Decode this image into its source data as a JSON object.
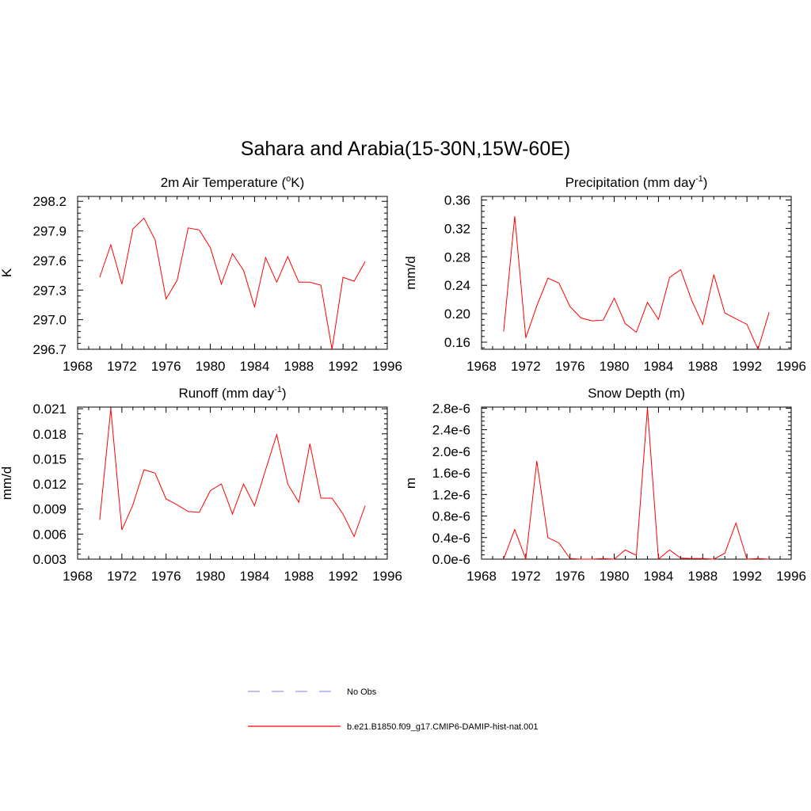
{
  "figure": {
    "title": "Sahara and Arabia(15-30N,15W-60E)"
  },
  "legend": {
    "items": [
      {
        "label": "No Obs",
        "color": "#9999ee",
        "style": "dashed"
      },
      {
        "label": "b.e21.B1850.f09_g17.CMIP6-DAMIP-hist-nat.001",
        "color": "#ff0000",
        "style": "solid"
      }
    ]
  },
  "chart_data": [
    {
      "type": "line",
      "title": "2m Air Temperature (°K)",
      "title_parts": [
        "2m Air Temperature (",
        "o",
        "K)"
      ],
      "ylabel": "K",
      "xlim": [
        1968,
        1996
      ],
      "xticks": [
        "1968",
        "1972",
        "1976",
        "1980",
        "1984",
        "1988",
        "1992",
        "1996"
      ],
      "ylim": [
        296.7,
        298.25
      ],
      "yticks": [
        "298.2",
        "297.9",
        "297.6",
        "297.3",
        "297.0",
        "296.7"
      ],
      "ytick_values": [
        298.2,
        297.9,
        297.6,
        297.3,
        297.0,
        296.7
      ],
      "grid": false,
      "series": [
        {
          "color": "#ff0000",
          "x": [
            1970,
            1971,
            1972,
            1973,
            1974,
            1975,
            1976,
            1977,
            1978,
            1979,
            1980,
            1981,
            1982,
            1983,
            1984,
            1985,
            1986,
            1987,
            1988,
            1989,
            1990,
            1991,
            1992,
            1993,
            1994
          ],
          "values": [
            297.43,
            297.76,
            297.36,
            297.92,
            298.03,
            297.81,
            297.21,
            297.4,
            297.93,
            297.91,
            297.73,
            297.36,
            297.67,
            297.5,
            297.13,
            297.63,
            297.38,
            297.64,
            297.38,
            297.38,
            297.35,
            296.7,
            297.43,
            297.39,
            297.59
          ]
        }
      ]
    },
    {
      "type": "line",
      "title": "Precipitation (mm day-1)",
      "title_parts": [
        "Precipitation (mm day",
        "-1",
        ")"
      ],
      "ylabel": "mm/d",
      "xlim": [
        1968,
        1996
      ],
      "xticks": [
        "1968",
        "1972",
        "1976",
        "1980",
        "1984",
        "1988",
        "1992",
        "1996"
      ],
      "ylim": [
        0.15,
        0.365
      ],
      "yticks": [
        "0.36",
        "0.32",
        "0.28",
        "0.24",
        "0.20",
        "0.16"
      ],
      "ytick_values": [
        0.36,
        0.32,
        0.28,
        0.24,
        0.2,
        0.16
      ],
      "grid": false,
      "series": [
        {
          "color": "#ff0000",
          "x": [
            1970,
            1971,
            1972,
            1973,
            1974,
            1975,
            1976,
            1977,
            1978,
            1979,
            1980,
            1981,
            1982,
            1983,
            1984,
            1985,
            1986,
            1987,
            1988,
            1989,
            1990,
            1991,
            1992,
            1993,
            1994
          ],
          "values": [
            0.175,
            0.337,
            0.166,
            0.211,
            0.25,
            0.243,
            0.21,
            0.194,
            0.19,
            0.191,
            0.222,
            0.186,
            0.174,
            0.216,
            0.192,
            0.251,
            0.262,
            0.219,
            0.185,
            0.255,
            0.201,
            0.193,
            0.185,
            0.15,
            0.202
          ]
        }
      ]
    },
    {
      "type": "line",
      "title": "Runoff (mm day-1)",
      "title_parts": [
        "Runoff (mm day",
        "-1",
        ")"
      ],
      "ylabel": "mm/d",
      "xlim": [
        1968,
        1996
      ],
      "xticks": [
        "1968",
        "1972",
        "1976",
        "1980",
        "1984",
        "1988",
        "1992",
        "1996"
      ],
      "ylim": [
        0.003,
        0.0212
      ],
      "yticks": [
        "0.021",
        "0.018",
        "0.015",
        "0.012",
        "0.009",
        "0.006",
        "0.003"
      ],
      "ytick_values": [
        0.021,
        0.018,
        0.015,
        0.012,
        0.009,
        0.006,
        0.003
      ],
      "grid": false,
      "series": [
        {
          "color": "#ff0000",
          "x": [
            1970,
            1971,
            1972,
            1973,
            1974,
            1975,
            1976,
            1977,
            1978,
            1979,
            1980,
            1981,
            1982,
            1983,
            1984,
            1985,
            1986,
            1987,
            1988,
            1989,
            1990,
            1991,
            1992,
            1993,
            1994
          ],
          "values": [
            0.0077,
            0.021,
            0.0065,
            0.0095,
            0.0137,
            0.0133,
            0.0102,
            0.0095,
            0.0087,
            0.0086,
            0.0112,
            0.012,
            0.0084,
            0.012,
            0.0094,
            0.0137,
            0.0179,
            0.012,
            0.0098,
            0.0168,
            0.0103,
            0.0103,
            0.0084,
            0.0057,
            0.0094
          ]
        }
      ]
    },
    {
      "type": "line",
      "title": "Snow Depth (m)",
      "title_parts": [
        "Snow Depth (m)"
      ],
      "ylabel": "m",
      "xlim": [
        1968,
        1996
      ],
      "xticks": [
        "1968",
        "1972",
        "1976",
        "1980",
        "1984",
        "1988",
        "1992",
        "1996"
      ],
      "ylim": [
        0,
        2.82e-06
      ],
      "yticks": [
        "2.8e-6",
        "2.4e-6",
        "2.0e-6",
        "1.6e-6",
        "1.2e-6",
        "0.8e-6",
        "0.4e-6",
        "0.0e-6"
      ],
      "ytick_values": [
        2.8e-06,
        2.4e-06,
        2e-06,
        1.6e-06,
        1.2e-06,
        8e-07,
        4e-07,
        0.0
      ],
      "grid": false,
      "series": [
        {
          "color": "#ff0000",
          "x": [
            1970,
            1971,
            1972,
            1973,
            1974,
            1975,
            1976,
            1977,
            1978,
            1979,
            1980,
            1981,
            1982,
            1983,
            1984,
            1985,
            1986,
            1987,
            1988,
            1989,
            1990,
            1991,
            1992,
            1993,
            1994
          ],
          "values": [
            0.0,
            5.5e-07,
            0.0,
            1.82e-06,
            4e-07,
            3e-07,
            1e-08,
            0.0,
            0.0,
            1e-08,
            0.0,
            1.7e-07,
            7e-08,
            2.8e-06,
            0.0,
            1.7e-07,
            2e-08,
            1e-08,
            1e-08,
            0.0,
            1.1e-07,
            6.7e-07,
            0.0,
            1e-08,
            0.0
          ]
        }
      ]
    }
  ]
}
